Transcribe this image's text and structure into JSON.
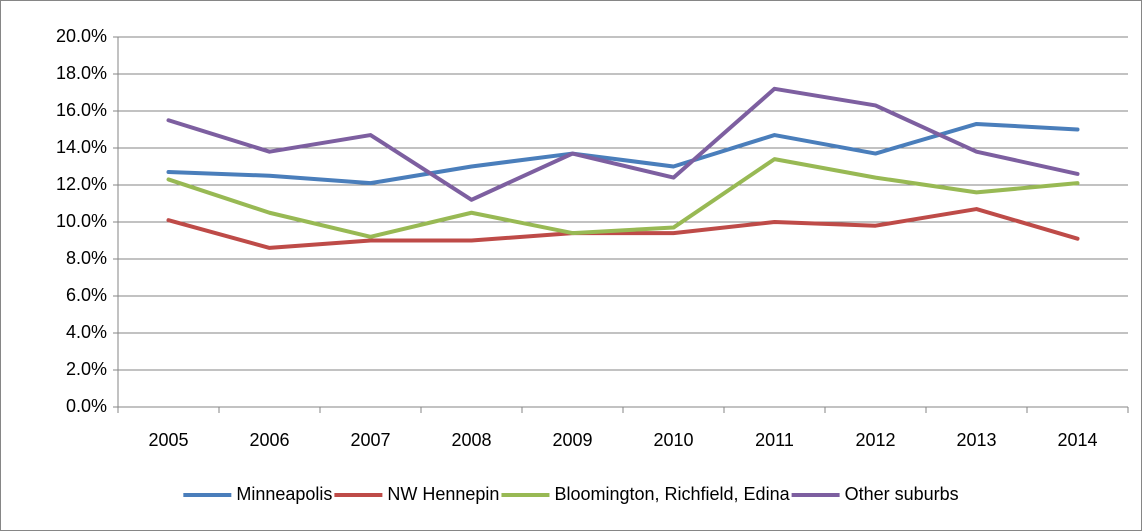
{
  "chart_data": {
    "type": "line",
    "categories": [
      "2005",
      "2006",
      "2007",
      "2008",
      "2009",
      "2010",
      "2011",
      "2012",
      "2013",
      "2014"
    ],
    "series": [
      {
        "name": "Minneapolis",
        "color": "#4a7ebb",
        "values": [
          12.7,
          12.5,
          12.1,
          13.0,
          13.7,
          13.0,
          14.7,
          13.7,
          15.3,
          15.0
        ]
      },
      {
        "name": "NW Hennepin",
        "color": "#be4b48",
        "values": [
          10.1,
          8.6,
          9.0,
          9.0,
          9.4,
          9.4,
          10.0,
          9.8,
          10.7,
          9.1
        ]
      },
      {
        "name": "Bloomington, Richfield, Edina",
        "color": "#98b954",
        "values": [
          12.3,
          10.5,
          9.2,
          10.5,
          9.4,
          9.7,
          13.4,
          12.4,
          11.6,
          12.1
        ]
      },
      {
        "name": "Other suburbs",
        "color": "#7d5fa0",
        "values": [
          15.5,
          13.8,
          14.7,
          11.2,
          13.7,
          12.4,
          17.2,
          16.3,
          13.8,
          12.6
        ]
      }
    ],
    "ylim": [
      0,
      20
    ],
    "yticks": [
      {
        "value": 0,
        "label": "0.0%"
      },
      {
        "value": 2,
        "label": "2.0%"
      },
      {
        "value": 4,
        "label": "4.0%"
      },
      {
        "value": 6,
        "label": "6.0%"
      },
      {
        "value": 8,
        "label": "8.0%"
      },
      {
        "value": 10,
        "label": "10.0%"
      },
      {
        "value": 12,
        "label": "12.0%"
      },
      {
        "value": 14,
        "label": "14.0%"
      },
      {
        "value": 16,
        "label": "16.0%"
      },
      {
        "value": 18,
        "label": "18.0%"
      },
      {
        "value": 20,
        "label": "20.0%"
      }
    ],
    "grid": true,
    "legend": "bottom"
  }
}
